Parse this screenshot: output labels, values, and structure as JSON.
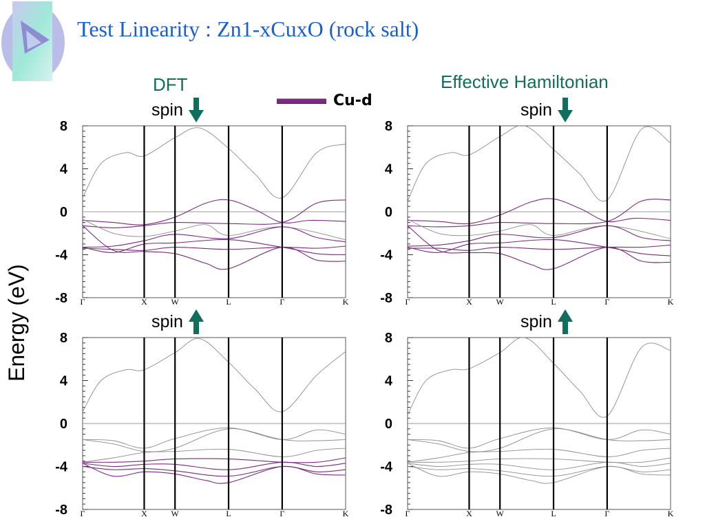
{
  "title": "Test Linearity : Zn1-xCuxO (rock salt)",
  "columns": {
    "left": "DFT",
    "right": "Effective Hamiltonian"
  },
  "spin_label": "spin",
  "legend": {
    "label": "Cu-d",
    "color": "#7a2a7e"
  },
  "ylabel": "Energy (eV)",
  "colors": {
    "title": "#1a5fd1",
    "heading": "#0f6e5c",
    "arrow": "#0f6e5c",
    "band": "#8c8c8c",
    "cud": "#7a2a7e"
  },
  "chart_data": [
    {
      "type": "line",
      "panel": "DFT spin down",
      "x_ticks": [
        "Γ",
        "X",
        "W",
        "L",
        "Γ",
        "K"
      ],
      "x_positions": [
        0,
        1,
        1.5,
        2.37,
        3.24,
        4.27
      ],
      "y_ticks": [
        "8",
        "4",
        "0",
        "-4",
        "-8"
      ],
      "ylim": [
        -8,
        8
      ],
      "reference_line": 0,
      "series": [
        {
          "cu_d": false,
          "x": [
            0,
            0.3,
            0.7,
            1,
            1.5,
            1.9,
            2.37,
            2.8,
            3.24,
            3.8,
            4.27
          ],
          "values": [
            1.3,
            4.5,
            5.5,
            5.2,
            6.9,
            7.8,
            5.9,
            3.5,
            1.3,
            5.5,
            6.3
          ]
        },
        {
          "cu_d": true,
          "x": [
            0,
            0.5,
            1,
            1.5,
            2,
            2.37,
            2.8,
            3.24,
            3.7,
            4.27
          ],
          "values": [
            -0.8,
            -1.0,
            -1.2,
            -0.5,
            0.8,
            1.1,
            0.2,
            -1.0,
            -0.8,
            -0.9
          ]
        },
        {
          "cu_d": true,
          "x": [
            0,
            0.5,
            1,
            1.5,
            2.37,
            3.24,
            3.8,
            4.27
          ],
          "values": [
            -1.3,
            -1.5,
            -1.3,
            -1.0,
            -1.1,
            -1.0,
            0.8,
            1.1
          ]
        },
        {
          "cu_d": false,
          "x": [
            0,
            0.5,
            1,
            1.5,
            2,
            2.37,
            3.24,
            4.27
          ],
          "values": [
            -0.7,
            -2.0,
            -2.3,
            -1.8,
            -1.2,
            -2.2,
            -1.4,
            -2.6
          ]
        },
        {
          "cu_d": true,
          "x": [
            0,
            0.5,
            1,
            1.5,
            2.37,
            3.24,
            3.8,
            4.27
          ],
          "values": [
            -3.3,
            -3.2,
            -2.7,
            -2.1,
            -2.5,
            -1.4,
            -2.4,
            -2.8
          ]
        },
        {
          "cu_d": true,
          "x": [
            0,
            0.5,
            1,
            1.5,
            2.37,
            3.24,
            3.8,
            4.27
          ],
          "values": [
            -3.4,
            -3.5,
            -3.6,
            -3.3,
            -3.5,
            -3.3,
            -3.4,
            -3.2
          ]
        },
        {
          "cu_d": true,
          "x": [
            0,
            0.5,
            1,
            1.5,
            2.37,
            3.24,
            3.8,
            4.27
          ],
          "values": [
            -3.3,
            -3.8,
            -3.0,
            -2.9,
            -2.6,
            -3.3,
            -3.9,
            -4.0
          ]
        },
        {
          "cu_d": true,
          "x": [
            0,
            0.5,
            1,
            1.5,
            2,
            2.37,
            3.24,
            3.8,
            4.27
          ],
          "values": [
            -1.3,
            -3.6,
            -3.7,
            -3.9,
            -4.8,
            -5.3,
            -3.3,
            -4.5,
            -4.6
          ]
        }
      ]
    },
    {
      "type": "line",
      "panel": "Effective Hamiltonian spin down",
      "x_ticks": [
        "Γ",
        "X",
        "W",
        "L",
        "Γ",
        "K"
      ],
      "x_positions": [
        0,
        1,
        1.5,
        2.37,
        3.24,
        4.27
      ],
      "y_ticks": [
        "8",
        "4",
        "0",
        "-4",
        "-8"
      ],
      "ylim": [
        -8,
        8
      ],
      "reference_line": 0,
      "series": [
        {
          "cu_d": false,
          "x": [
            0,
            0.3,
            0.7,
            1,
            1.5,
            1.9,
            2.37,
            2.8,
            3.24,
            3.8,
            4.27
          ],
          "values": [
            1.0,
            4.5,
            5.5,
            5.3,
            7.0,
            8.0,
            5.8,
            3.5,
            1.1,
            7.7,
            6.4
          ]
        },
        {
          "cu_d": true,
          "x": [
            0,
            0.5,
            1,
            1.5,
            2,
            2.37,
            2.8,
            3.24,
            3.7,
            4.27
          ],
          "values": [
            -0.8,
            -0.9,
            -1.1,
            -0.3,
            0.9,
            1.2,
            0.3,
            -0.9,
            -0.6,
            -0.8
          ]
        },
        {
          "cu_d": true,
          "x": [
            0,
            0.5,
            1,
            1.5,
            2.37,
            3.24,
            3.8,
            4.27
          ],
          "values": [
            -1.3,
            -1.4,
            -1.3,
            -1.0,
            -1.1,
            -0.9,
            1.0,
            1.1
          ]
        },
        {
          "cu_d": false,
          "x": [
            0,
            0.5,
            1,
            1.5,
            2,
            2.37,
            3.24,
            4.27
          ],
          "values": [
            -0.7,
            -2.0,
            -2.2,
            -1.8,
            -1.2,
            -2.2,
            -1.3,
            -2.5
          ]
        },
        {
          "cu_d": true,
          "x": [
            0,
            0.5,
            1,
            1.5,
            2.37,
            3.24,
            3.8,
            4.27
          ],
          "values": [
            -3.2,
            -3.1,
            -2.7,
            -2.1,
            -2.4,
            -1.3,
            -2.4,
            -2.7
          ]
        },
        {
          "cu_d": true,
          "x": [
            0,
            0.5,
            1,
            1.5,
            2.37,
            3.24,
            3.8,
            4.27
          ],
          "values": [
            -3.4,
            -3.4,
            -3.6,
            -3.3,
            -3.5,
            -3.3,
            -3.3,
            -3.1
          ]
        },
        {
          "cu_d": true,
          "x": [
            0,
            0.5,
            1,
            1.5,
            2.37,
            3.24,
            3.8,
            4.27
          ],
          "values": [
            -3.3,
            -3.8,
            -3.0,
            -2.9,
            -2.6,
            -3.3,
            -3.9,
            -4.1
          ]
        },
        {
          "cu_d": true,
          "x": [
            0,
            0.5,
            1,
            1.5,
            2,
            2.37,
            3.24,
            3.8,
            4.27
          ],
          "values": [
            -1.3,
            -3.6,
            -3.8,
            -3.9,
            -4.9,
            -5.3,
            -3.3,
            -4.6,
            -4.7
          ]
        }
      ]
    },
    {
      "type": "line",
      "panel": "DFT spin up",
      "x_ticks": [
        "Γ",
        "X",
        "W",
        "L",
        "Γ",
        "K"
      ],
      "x_positions": [
        0,
        1,
        1.5,
        2.37,
        3.24,
        4.27
      ],
      "y_ticks": [
        "8",
        "4",
        "0",
        "-4",
        "-8"
      ],
      "ylim": [
        -8,
        8
      ],
      "reference_line": 0,
      "series": [
        {
          "cu_d": false,
          "x": [
            0,
            0.3,
            0.7,
            1,
            1.5,
            1.9,
            2.37,
            2.8,
            3.24,
            3.8,
            4.27
          ],
          "values": [
            1.1,
            4.0,
            5.0,
            5.0,
            6.6,
            7.9,
            5.7,
            3.2,
            1.1,
            4.5,
            6.7
          ]
        },
        {
          "cu_d": false,
          "x": [
            0,
            0.5,
            1,
            1.5,
            2.37,
            3.24,
            3.8,
            4.27
          ],
          "values": [
            -1.5,
            -1.6,
            -2.3,
            -1.4,
            -0.4,
            -1.5,
            -0.6,
            -1.0
          ]
        },
        {
          "cu_d": false,
          "x": [
            0,
            0.5,
            1,
            1.5,
            2.37,
            3.24,
            3.8,
            4.27
          ],
          "values": [
            -1.5,
            -1.9,
            -2.6,
            -2.3,
            -0.5,
            -1.5,
            -1.6,
            -1.5
          ]
        },
        {
          "cu_d": false,
          "x": [
            0,
            0.5,
            1,
            1.5,
            2.37,
            3.24,
            3.8,
            4.27
          ],
          "values": [
            -3.6,
            -3.2,
            -2.7,
            -2.6,
            -2.4,
            -3.1,
            -2.5,
            -2.3
          ]
        },
        {
          "cu_d": true,
          "x": [
            0,
            0.5,
            1,
            1.5,
            2.37,
            3.24,
            3.8,
            4.27
          ],
          "values": [
            -3.6,
            -3.6,
            -3.5,
            -3.3,
            -3.3,
            -3.6,
            -3.6,
            -3.2
          ]
        },
        {
          "cu_d": true,
          "x": [
            0,
            0.5,
            1,
            1.5,
            2.37,
            3.24,
            3.8,
            4.27
          ],
          "values": [
            -3.7,
            -4.0,
            -3.8,
            -3.8,
            -4.3,
            -3.6,
            -4.0,
            -3.7
          ]
        },
        {
          "cu_d": true,
          "x": [
            0,
            0.5,
            1,
            1.5,
            2.37,
            3.24,
            3.8,
            4.27
          ],
          "values": [
            -4.0,
            -4.3,
            -4.2,
            -4.4,
            -4.9,
            -4.0,
            -4.5,
            -4.3
          ]
        },
        {
          "cu_d": true,
          "x": [
            0,
            0.5,
            1,
            1.5,
            2,
            2.37,
            3.24,
            3.8,
            4.27
          ],
          "values": [
            -3.7,
            -4.9,
            -4.5,
            -4.7,
            -5.3,
            -5.5,
            -4.0,
            -4.7,
            -4.8
          ]
        }
      ]
    },
    {
      "type": "line",
      "panel": "Effective Hamiltonian spin up",
      "x_ticks": [
        "Γ",
        "X",
        "W",
        "L",
        "Γ",
        "K"
      ],
      "x_positions": [
        0,
        1,
        1.5,
        2.37,
        3.24,
        4.27
      ],
      "y_ticks": [
        "8",
        "4",
        "0",
        "-4",
        "-8"
      ],
      "ylim": [
        -8,
        8
      ],
      "reference_line": 0,
      "series": [
        {
          "cu_d": false,
          "x": [
            0,
            0.3,
            0.7,
            1,
            1.5,
            1.9,
            2.37,
            2.8,
            3.24,
            3.8,
            4.27
          ],
          "values": [
            0.8,
            4.0,
            5.0,
            5.1,
            6.6,
            8.0,
            5.6,
            3.0,
            0.7,
            7.1,
            6.8
          ]
        },
        {
          "cu_d": false,
          "x": [
            0,
            0.5,
            1,
            1.5,
            2.37,
            3.24,
            3.8,
            4.27
          ],
          "values": [
            -1.5,
            -1.6,
            -2.3,
            -1.4,
            -0.4,
            -1.5,
            -0.6,
            -1.0
          ]
        },
        {
          "cu_d": false,
          "x": [
            0,
            0.5,
            1,
            1.5,
            2.37,
            3.24,
            3.8,
            4.27
          ],
          "values": [
            -1.5,
            -1.9,
            -2.6,
            -2.3,
            -0.5,
            -1.5,
            -1.6,
            -1.5
          ]
        },
        {
          "cu_d": false,
          "x": [
            0,
            0.5,
            1,
            1.5,
            2.37,
            3.24,
            3.8,
            4.27
          ],
          "values": [
            -3.6,
            -3.2,
            -2.7,
            -2.6,
            -2.4,
            -3.1,
            -2.5,
            -2.3
          ]
        },
        {
          "cu_d": false,
          "x": [
            0,
            0.5,
            1,
            1.5,
            2.37,
            3.24,
            3.8,
            4.27
          ],
          "values": [
            -3.6,
            -3.6,
            -3.5,
            -3.3,
            -3.3,
            -3.6,
            -3.6,
            -3.2
          ]
        },
        {
          "cu_d": false,
          "x": [
            0,
            0.5,
            1,
            1.5,
            2.37,
            3.24,
            3.8,
            4.27
          ],
          "values": [
            -3.7,
            -4.0,
            -3.8,
            -3.8,
            -4.3,
            -3.6,
            -4.0,
            -3.7
          ]
        },
        {
          "cu_d": false,
          "x": [
            0,
            0.5,
            1,
            1.5,
            2.37,
            3.24,
            3.8,
            4.27
          ],
          "values": [
            -4.0,
            -4.3,
            -4.2,
            -4.4,
            -4.9,
            -4.0,
            -4.5,
            -4.3
          ]
        },
        {
          "cu_d": false,
          "x": [
            0,
            0.5,
            1,
            1.5,
            2,
            2.37,
            3.24,
            3.8,
            4.27
          ],
          "values": [
            -3.7,
            -4.9,
            -4.5,
            -4.7,
            -5.3,
            -5.5,
            -4.0,
            -4.7,
            -4.8
          ]
        }
      ]
    }
  ]
}
